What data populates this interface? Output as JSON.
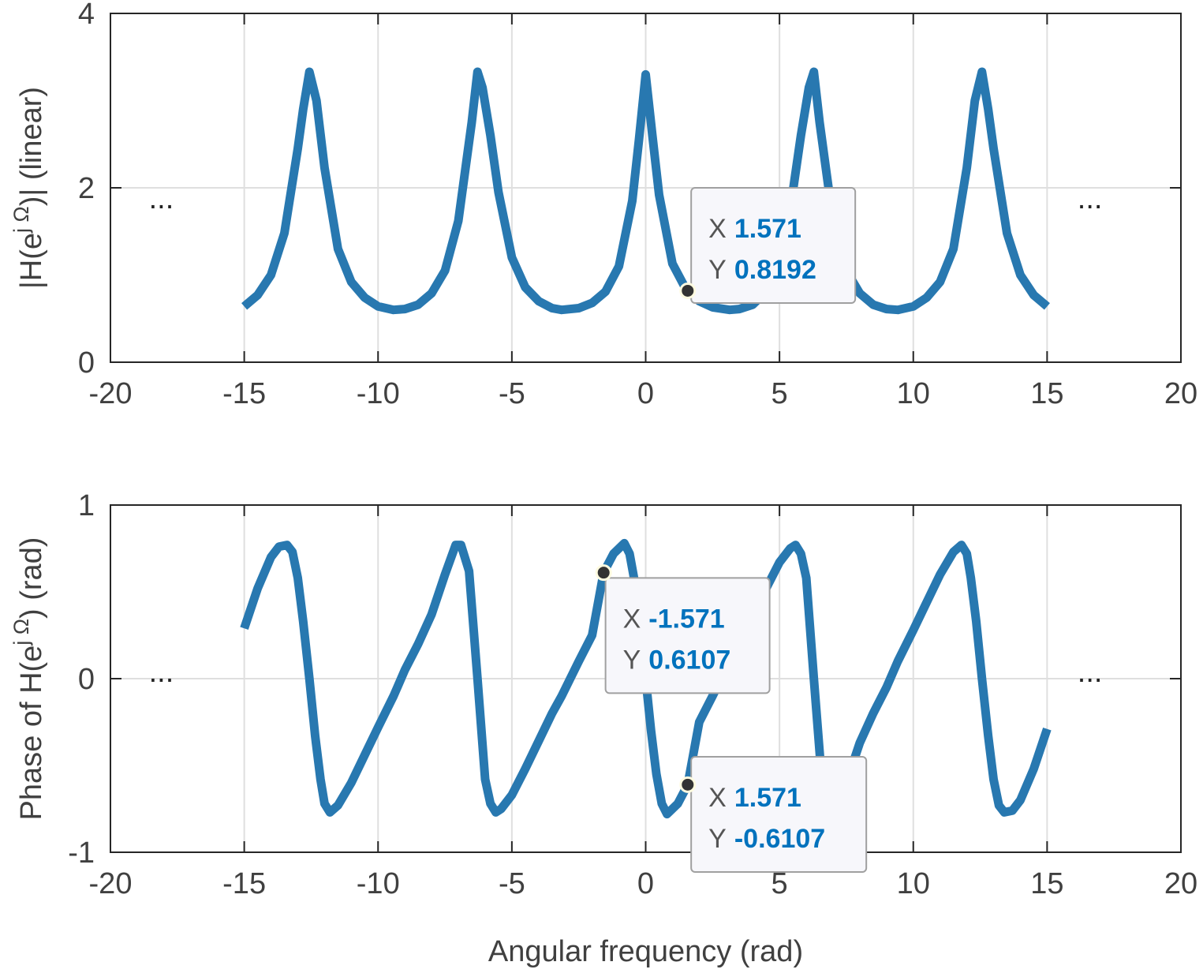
{
  "chart_data": [
    {
      "type": "line",
      "title": "",
      "xlabel": "",
      "ylabel": "|H(e^{jΩ})| (linear)",
      "ylabel_parts": {
        "pre": "|H(e",
        "sup": "j Ω",
        "post": ")| (linear)"
      },
      "xlim": [
        -20,
        20
      ],
      "ylim": [
        0,
        4
      ],
      "xticks": [
        "-20",
        "-15",
        "-10",
        "-5",
        "0",
        "5",
        "10",
        "15",
        "20"
      ],
      "yticks": [
        "0",
        "2",
        "4"
      ],
      "grid": true,
      "series": [
        {
          "line_color": "#2878b0",
          "x": [
            -15,
            -14.5,
            -14,
            -13.5,
            -13,
            -12.8,
            -12.566,
            -12.3,
            -12,
            -11.5,
            -11,
            -10.5,
            -10,
            -9.42,
            -9,
            -8.5,
            -8,
            -7.5,
            -7,
            -6.5,
            -6.283,
            -6.1,
            -5.8,
            -5.5,
            -5,
            -4.5,
            -4,
            -3.5,
            -3.14,
            -2.5,
            -2,
            -1.5,
            -1,
            -0.5,
            -0.25,
            0,
            0.25,
            0.5,
            1,
            1.5,
            1.571,
            2,
            2.5,
            3.14,
            3.5,
            4,
            4.5,
            5,
            5.5,
            5.8,
            6.1,
            6.283,
            6.5,
            7,
            7.5,
            8,
            8.5,
            9,
            9.42,
            10,
            10.5,
            11,
            11.5,
            12,
            12.3,
            12.566,
            12.8,
            13,
            13.5,
            14,
            14.5,
            15
          ],
          "y": [
            0.64,
            0.77,
            1.0,
            1.48,
            2.45,
            2.9,
            3.33,
            3.0,
            2.23,
            1.3,
            0.92,
            0.74,
            0.64,
            0.6,
            0.61,
            0.66,
            0.79,
            1.05,
            1.62,
            2.75,
            3.33,
            3.15,
            2.6,
            1.95,
            1.2,
            0.86,
            0.7,
            0.62,
            0.6,
            0.62,
            0.68,
            0.81,
            1.1,
            1.85,
            2.55,
            3.3,
            2.6,
            1.92,
            1.13,
            0.84,
            0.8192,
            0.7,
            0.63,
            0.6,
            0.61,
            0.66,
            0.81,
            1.18,
            1.96,
            2.6,
            3.15,
            3.33,
            2.75,
            1.62,
            1.05,
            0.79,
            0.66,
            0.61,
            0.6,
            0.64,
            0.74,
            0.92,
            1.3,
            2.23,
            3.0,
            3.33,
            2.9,
            2.45,
            1.48,
            1.0,
            0.77,
            0.64
          ]
        }
      ],
      "annotations": [
        {
          "kind": "ellipsis",
          "text": "...",
          "x": -18.1,
          "y": 1.8
        },
        {
          "kind": "ellipsis",
          "text": "...",
          "x": 16.6,
          "y": 1.8
        }
      ],
      "datatips": [
        {
          "x": 1.571,
          "y": 0.8192,
          "x_label": "X",
          "y_label": "Y",
          "x_text": "1.571",
          "y_text": "0.8192",
          "box_at": [
            1.7,
            2.0
          ]
        }
      ]
    },
    {
      "type": "line",
      "title": "",
      "xlabel": "Angular frequency (rad)",
      "ylabel": "Phase of H(e^{jΩ}) (rad)",
      "ylabel_parts": {
        "pre": "Phase of H(e",
        "sup": "j Ω",
        "post": ") (rad)"
      },
      "xlim": [
        -20,
        20
      ],
      "ylim": [
        -1,
        1
      ],
      "xticks": [
        "-20",
        "-15",
        "-10",
        "-5",
        "0",
        "5",
        "10",
        "15",
        "20"
      ],
      "yticks": [
        "-1",
        "0",
        "1"
      ],
      "grid": true,
      "series": [
        {
          "line_color": "#2878b0",
          "x": [
            -15,
            -14.5,
            -14,
            -13.7,
            -13.4,
            -13.2,
            -13.0,
            -12.8,
            -12.566,
            -12.35,
            -12.15,
            -12.0,
            -11.8,
            -11.5,
            -11,
            -10.5,
            -10,
            -9.42,
            -9,
            -8.5,
            -8,
            -7.5,
            -7.1,
            -6.9,
            -6.6,
            -6.283,
            -6.0,
            -5.8,
            -5.6,
            -5.4,
            -5.0,
            -4.5,
            -4,
            -3.5,
            -3.14,
            -2.5,
            -2,
            -1.571,
            -1.2,
            -0.8,
            -0.6,
            -0.4,
            -0.2,
            0,
            0.2,
            0.4,
            0.6,
            0.8,
            1.2,
            1.571,
            2,
            2.5,
            3.14,
            3.5,
            4,
            4.5,
            5,
            5.4,
            5.6,
            5.8,
            6.0,
            6.283,
            6.6,
            6.9,
            7.1,
            7.5,
            8,
            8.5,
            9,
            9.42,
            10,
            10.5,
            11,
            11.5,
            11.8,
            12.0,
            12.15,
            12.35,
            12.566,
            12.8,
            13.0,
            13.2,
            13.4,
            13.7,
            14,
            14.5,
            15
          ],
          "y": [
            0.29,
            0.52,
            0.7,
            0.76,
            0.77,
            0.73,
            0.58,
            0.33,
            0.0,
            -0.33,
            -0.58,
            -0.72,
            -0.77,
            -0.73,
            -0.6,
            -0.44,
            -0.28,
            -0.1,
            0.05,
            0.2,
            0.37,
            0.6,
            0.77,
            0.77,
            0.62,
            0.0,
            -0.58,
            -0.72,
            -0.77,
            -0.75,
            -0.67,
            -0.52,
            -0.36,
            -0.2,
            -0.1,
            0.1,
            0.25,
            0.6107,
            0.72,
            0.78,
            0.72,
            0.55,
            0.3,
            0.0,
            -0.3,
            -0.55,
            -0.72,
            -0.78,
            -0.72,
            -0.6107,
            -0.25,
            -0.1,
            0.1,
            0.2,
            0.36,
            0.52,
            0.67,
            0.75,
            0.77,
            0.72,
            0.58,
            0.0,
            -0.62,
            -0.77,
            -0.77,
            -0.6,
            -0.37,
            -0.2,
            -0.05,
            0.1,
            0.28,
            0.44,
            0.6,
            0.73,
            0.77,
            0.72,
            0.58,
            0.33,
            0.0,
            -0.33,
            -0.58,
            -0.73,
            -0.77,
            -0.76,
            -0.7,
            -0.52,
            -0.29
          ]
        }
      ],
      "annotations": [
        {
          "kind": "ellipsis",
          "text": "...",
          "x": -18.1,
          "y": 0.0
        },
        {
          "kind": "ellipsis",
          "text": "...",
          "x": 16.6,
          "y": 0.0
        }
      ],
      "datatips": [
        {
          "x": -1.571,
          "y": 0.6107,
          "x_label": "X",
          "y_label": "Y",
          "x_text": "-1.571",
          "y_text": "0.6107",
          "box_at": [
            -1.5,
            0.58
          ]
        },
        {
          "x": 1.571,
          "y": -0.6107,
          "x_label": "X",
          "y_label": "Y",
          "x_text": "1.571",
          "y_text": "-0.6107",
          "box_at": [
            1.7,
            -0.45
          ]
        }
      ]
    }
  ]
}
